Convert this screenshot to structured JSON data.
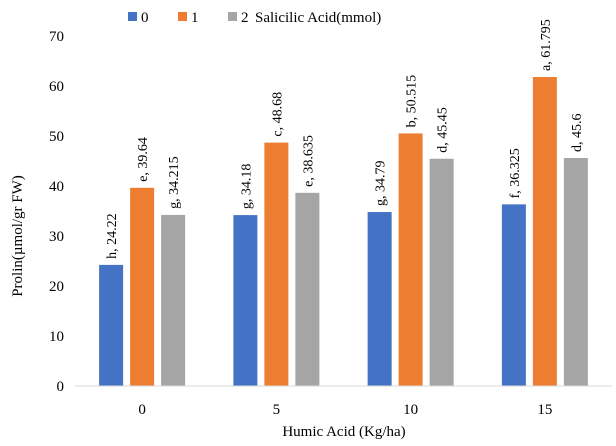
{
  "chart_data": {
    "type": "bar",
    "xlabel": "Humic Acid (Kg/ha)",
    "ylabel": "Prolin(µmol/gr FW)",
    "ylim": [
      0,
      70
    ],
    "yticks": [
      0,
      10,
      20,
      30,
      40,
      50,
      60,
      70
    ],
    "categories": [
      "0",
      "5",
      "10",
      "15"
    ],
    "legend_title": "Salicilic Acid(mmol)",
    "legend_position": "top",
    "grid": false,
    "series": [
      {
        "name": "0",
        "color": "#4472C4",
        "values": [
          24.22,
          34.18,
          34.79,
          36.325
        ],
        "labels": [
          "h, 24.22",
          "g, 34.18",
          "g, 34.79",
          "f, 36.325"
        ]
      },
      {
        "name": "1",
        "color": "#ED7D31",
        "values": [
          39.64,
          48.68,
          50.515,
          61.795
        ],
        "labels": [
          "e, 39.64",
          "c, 48.68",
          "b, 50.515",
          "a, 61.795"
        ]
      },
      {
        "name": "2",
        "color": "#A5A5A5",
        "values": [
          34.215,
          38.635,
          45.45,
          45.6
        ],
        "labels": [
          "g, 34.215",
          "e, 38.635",
          "d, 45.45",
          "d, 45.6"
        ]
      }
    ]
  }
}
